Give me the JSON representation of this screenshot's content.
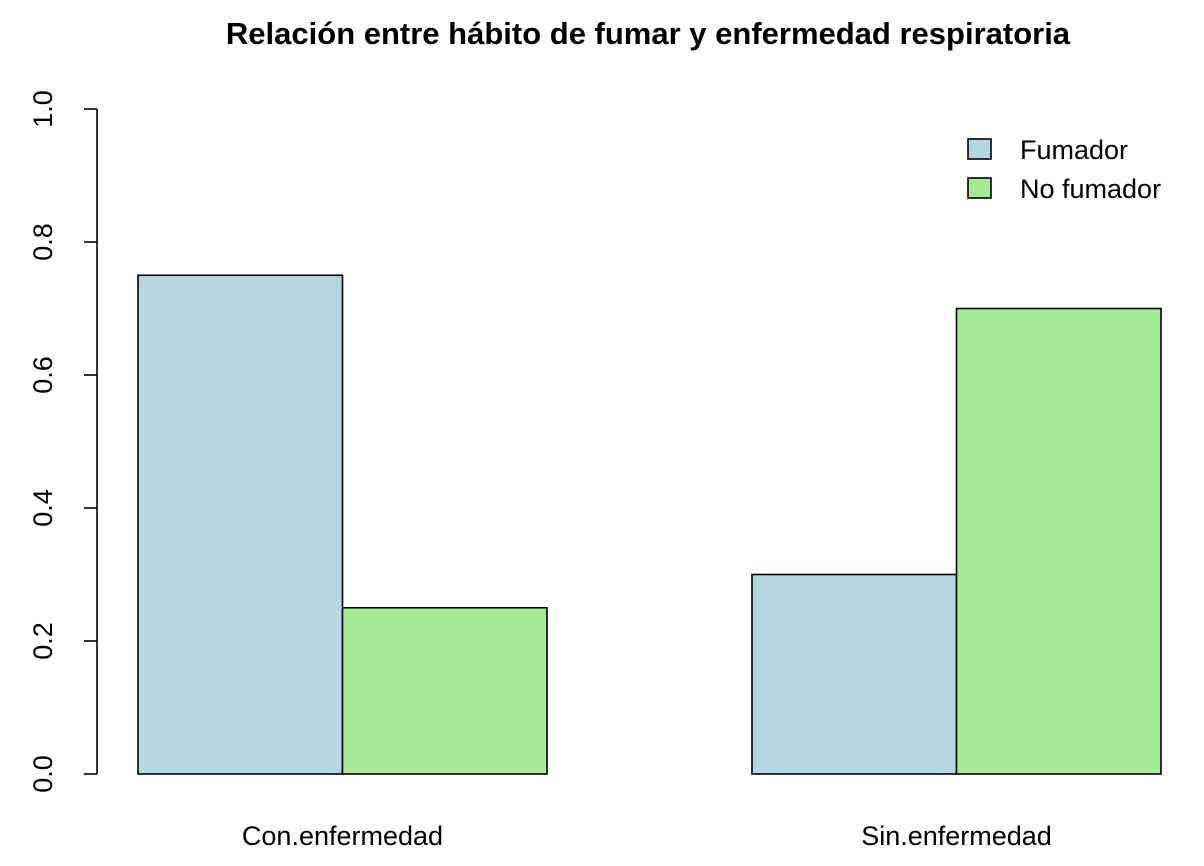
{
  "chart_data": {
    "type": "bar",
    "title": "Relación entre hábito de fumar y enfermedad respiratoria",
    "xlabel": "",
    "ylabel": "",
    "categories": [
      "Con.enfermedad",
      "Sin.enfermedad"
    ],
    "series": [
      {
        "name": "Fumador",
        "values": [
          0.75,
          0.3
        ],
        "color": "#B4D7E2"
      },
      {
        "name": "No fumador",
        "values": [
          0.25,
          0.7
        ],
        "color": "#A4EA97"
      }
    ],
    "ylim": [
      0,
      1
    ],
    "yticks": [
      "0.0",
      "0.2",
      "0.4",
      "0.6",
      "0.8",
      "1.0"
    ],
    "grid": false,
    "legend_position": "top-right",
    "bar_mode": "grouped"
  }
}
